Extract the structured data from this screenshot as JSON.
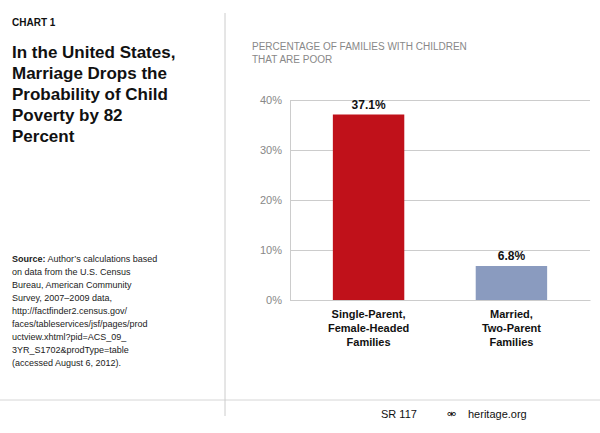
{
  "chart_data": {
    "type": "bar",
    "title": "In the United States,\nMarriage Drops the\nProbability of Child\nPoverty by 82\nPercent",
    "subtitle": "PERCENTAGE OF FAMILIES WITH CHILDREN\nTHAT ARE POOR",
    "categories": [
      "Single-Parent,\nFemale-Headed\nFamilies",
      "Married,\nTwo-Parent\nFamilies"
    ],
    "values": [
      37.1,
      6.8
    ],
    "value_labels": [
      "37.1%",
      "6.8%"
    ],
    "colors": [
      "#c0111a",
      "#8a9bbf"
    ],
    "ylim": [
      0,
      40
    ],
    "yticks": [
      {
        "value": 0,
        "label": "0%"
      },
      {
        "value": 10,
        "label": "10%"
      },
      {
        "value": 20,
        "label": "20%"
      },
      {
        "value": 30,
        "label": "30%"
      },
      {
        "value": 40,
        "label": "40%"
      }
    ],
    "grid": true,
    "annotations": [
      "CHART 1",
      "Source:",
      " Author’s calculations based\non data from the U.S. Census\nBureau, American Community\nSurvey, 2007–2009 data,\nhttp://factfinder2.census.gov/\nfaces/tableservices/jsf/pages/prod\nuctview.xhtml?pid=ACS_09_\n3YR_S1702&prodType=table\n(accessed August 6, 2012).",
      "SR 117",
      "⚮",
      "heritage.org"
    ]
  }
}
